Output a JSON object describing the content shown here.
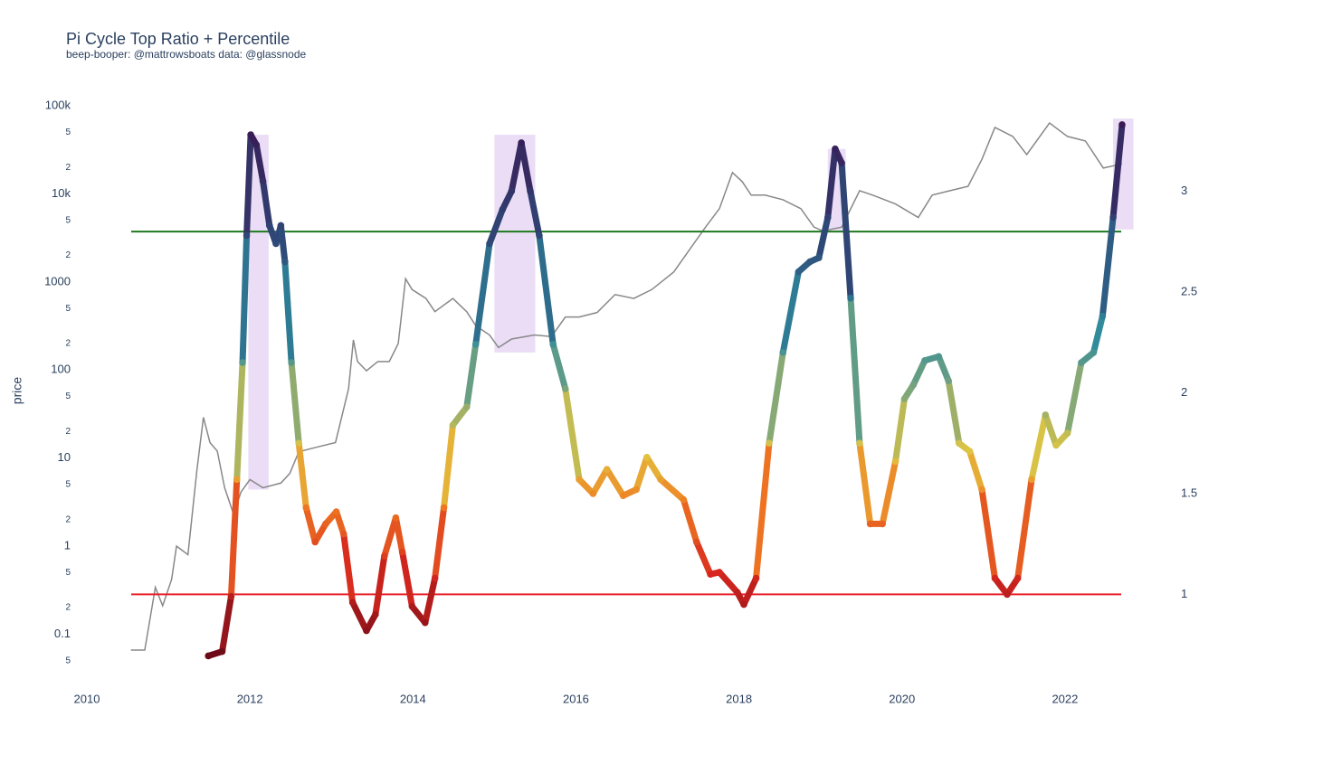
{
  "chart_data": {
    "type": "line-scatter",
    "title": "Pi Cycle Top Ratio + Percentile",
    "subtitle": "beep-booper: @mattrowsboats data: @glassnode",
    "y_label": "price",
    "xlim": [
      2010,
      2023.1
    ],
    "xticks": [
      2010,
      2012,
      2014,
      2016,
      2018,
      2020,
      2022
    ],
    "ylim": [
      0.025,
      150000
    ],
    "y_log": true,
    "yticks": [
      {
        "value": 100000,
        "label": "100k"
      },
      {
        "value": 50000,
        "label": "5"
      },
      {
        "value": 20000,
        "label": "2"
      },
      {
        "value": 10000,
        "label": "10k"
      },
      {
        "value": 5000,
        "label": "5"
      },
      {
        "value": 2000,
        "label": "2"
      },
      1000,
      {
        "value": 500,
        "label": "5"
      },
      {
        "value": 200,
        "label": "2"
      },
      100,
      {
        "value": 50,
        "label": "5"
      },
      {
        "value": 20,
        "label": "2"
      },
      10,
      5,
      2,
      1,
      {
        "value": 0.5,
        "label": "5"
      },
      {
        "value": 0.2,
        "label": "2"
      },
      0.1,
      {
        "value": 0.05,
        "label": "5"
      }
    ],
    "y2lim": [
      0.54,
      3.5
    ],
    "y2ticks": [
      1,
      1.5,
      2,
      2.5,
      3
    ],
    "highlight_color": "rgba(190,150,225,0.32)",
    "highlight_regions": [
      {
        "x": [
          2011.98,
          2012.23
        ],
        "y2": [
          1.52,
          3.28
        ]
      },
      {
        "x": [
          2015.0,
          2015.5
        ],
        "y2": [
          2.2,
          3.28
        ]
      },
      {
        "x": [
          2019.09,
          2019.31
        ],
        "y2": [
          2.8,
          3.21
        ]
      },
      {
        "x": [
          2022.59,
          2022.84
        ],
        "y2": [
          2.81,
          3.36
        ]
      }
    ],
    "hlines": [
      {
        "y2": 2.8,
        "color": "#1e7a1e"
      },
      {
        "y2": 1,
        "color": "#e8202a"
      }
    ],
    "series": [
      {
        "color": "#888888",
        "axis": "y",
        "x": [
          2010.54,
          2010.71,
          2010.84,
          2010.93,
          2011.04,
          2011.1,
          2011.24,
          2011.35,
          2011.43,
          2011.51,
          2011.6,
          2011.69,
          2011.8,
          2011.89,
          2012.0,
          2012.16,
          2012.38,
          2012.49,
          2012.6,
          2012.82,
          2013.05,
          2013.21,
          2013.27,
          2013.32,
          2013.43,
          2013.57,
          2013.71,
          2013.82,
          2013.91,
          2013.99,
          2014.16,
          2014.27,
          2014.49,
          2014.66,
          2014.77,
          2014.94,
          2015.05,
          2015.21,
          2015.49,
          2015.7,
          2015.87,
          2016.04,
          2016.26,
          2016.48,
          2016.71,
          2016.93,
          2017.2,
          2017.43,
          2017.59,
          2017.76,
          2017.92,
          2018.04,
          2018.15,
          2018.32,
          2018.54,
          2018.76,
          2018.92,
          2019.03,
          2019.26,
          2019.48,
          2019.64,
          2019.92,
          2020.2,
          2020.37,
          2020.59,
          2020.81,
          2020.98,
          2021.14,
          2021.36,
          2021.53,
          2021.81,
          2022.03,
          2022.25,
          2022.47,
          2022.7
        ],
        "values": [
          0.066,
          0.066,
          0.34,
          0.21,
          0.42,
          1.0,
          0.8,
          7.3,
          29,
          15,
          12,
          4.6,
          2.3,
          4.1,
          5.7,
          4.6,
          5.2,
          6.7,
          11.8,
          13.3,
          15,
          61,
          220,
          125,
          98,
          125,
          125,
          200,
          1090,
          820,
          650,
          460,
          650,
          460,
          320,
          250,
          180,
          225,
          250,
          240,
          400,
          400,
          450,
          720,
          650,
          820,
          1300,
          2600,
          4200,
          6800,
          17500,
          13800,
          9700,
          9700,
          8600,
          6800,
          4200,
          3800,
          4200,
          10900,
          9700,
          7700,
          5400,
          9700,
          10900,
          12200,
          24700,
          57000,
          45000,
          28000,
          64000,
          45000,
          40000,
          19700,
          22000
        ]
      },
      {
        "axis": "y2",
        "colorscale": [
          [
            0.7,
            "#6b0a18"
          ],
          [
            1.1,
            "#d7261e"
          ],
          [
            1.45,
            "#ef7b22"
          ],
          [
            1.7,
            "#e2c640"
          ],
          [
            2.0,
            "#7fa67a"
          ],
          [
            2.3,
            "#2e8a9c"
          ],
          [
            2.75,
            "#2e4a78"
          ],
          [
            3.3,
            "#3a1a55"
          ]
        ],
        "x": [
          2011.49,
          2011.66,
          2011.77,
          2011.84,
          2011.91,
          2011.96,
          2012.01,
          2012.08,
          2012.16,
          2012.24,
          2012.32,
          2012.38,
          2012.43,
          2012.51,
          2012.6,
          2012.69,
          2012.8,
          2012.93,
          2013.06,
          2013.15,
          2013.26,
          2013.43,
          2013.54,
          2013.65,
          2013.79,
          2013.87,
          2013.99,
          2014.15,
          2014.27,
          2014.38,
          2014.49,
          2014.66,
          2014.77,
          2014.94,
          2015.1,
          2015.21,
          2015.33,
          2015.44,
          2015.55,
          2015.72,
          2015.87,
          2016.04,
          2016.21,
          2016.38,
          2016.58,
          2016.74,
          2016.87,
          2017.04,
          2017.32,
          2017.48,
          2017.65,
          2017.76,
          2017.98,
          2018.06,
          2018.21,
          2018.37,
          2018.54,
          2018.73,
          2018.87,
          2018.98,
          2019.09,
          2019.18,
          2019.26,
          2019.37,
          2019.48,
          2019.61,
          2019.76,
          2019.92,
          2020.03,
          2020.14,
          2020.28,
          2020.45,
          2020.57,
          2020.7,
          2020.83,
          2020.98,
          2021.14,
          2021.29,
          2021.42,
          2021.59,
          2021.76,
          2021.89,
          2022.03,
          2022.2,
          2022.35,
          2022.46,
          2022.59,
          2022.7
        ],
        "values": [
          0.695,
          0.717,
          0.99,
          1.57,
          2.15,
          2.78,
          3.28,
          3.23,
          3.05,
          2.83,
          2.74,
          2.83,
          2.65,
          2.15,
          1.75,
          1.43,
          1.26,
          1.35,
          1.41,
          1.3,
          0.96,
          0.82,
          0.9,
          1.19,
          1.38,
          1.21,
          0.94,
          0.86,
          1.08,
          1.43,
          1.84,
          1.93,
          2.24,
          2.74,
          2.91,
          3.0,
          3.24,
          3.0,
          2.78,
          2.24,
          2.02,
          1.57,
          1.5,
          1.62,
          1.49,
          1.52,
          1.68,
          1.57,
          1.47,
          1.26,
          1.1,
          1.11,
          1.01,
          0.95,
          1.08,
          1.75,
          2.2,
          2.6,
          2.65,
          2.67,
          2.87,
          3.21,
          3.14,
          2.47,
          1.75,
          1.35,
          1.35,
          1.66,
          1.97,
          2.04,
          2.16,
          2.18,
          2.06,
          1.75,
          1.71,
          1.52,
          1.08,
          1.0,
          1.08,
          1.57,
          1.89,
          1.74,
          1.8,
          2.15,
          2.2,
          2.38,
          2.87,
          3.33
        ]
      }
    ]
  }
}
